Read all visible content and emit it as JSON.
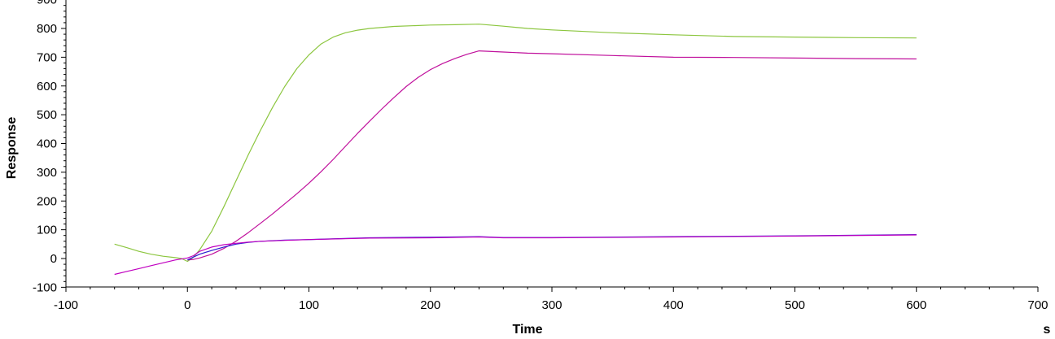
{
  "chart_data": {
    "type": "line",
    "title": "",
    "xlabel": "Time",
    "ylabel": "Response",
    "x_unit": "s",
    "xlim": [
      -100,
      700
    ],
    "ylim": [
      -100,
      900
    ],
    "x_ticks": [
      -100,
      0,
      100,
      200,
      300,
      400,
      500,
      600,
      700
    ],
    "y_ticks": [
      -100,
      0,
      100,
      200,
      300,
      400,
      500,
      600,
      700,
      800
    ],
    "grid": false,
    "legend": "none",
    "series": [
      {
        "color": "#8cc63f",
        "points": [
          [
            -60,
            50
          ],
          [
            -50,
            38
          ],
          [
            -40,
            25
          ],
          [
            -30,
            15
          ],
          [
            -20,
            8
          ],
          [
            -10,
            3
          ],
          [
            -5,
            0
          ],
          [
            0,
            -10
          ],
          [
            5,
            5
          ],
          [
            10,
            30
          ],
          [
            20,
            95
          ],
          [
            30,
            180
          ],
          [
            40,
            270
          ],
          [
            50,
            360
          ],
          [
            60,
            445
          ],
          [
            70,
            525
          ],
          [
            80,
            598
          ],
          [
            90,
            660
          ],
          [
            100,
            708
          ],
          [
            110,
            746
          ],
          [
            120,
            770
          ],
          [
            130,
            785
          ],
          [
            140,
            794
          ],
          [
            150,
            800
          ],
          [
            170,
            807
          ],
          [
            200,
            812
          ],
          [
            220,
            813
          ],
          [
            240,
            815
          ],
          [
            260,
            808
          ],
          [
            280,
            800
          ],
          [
            300,
            795
          ],
          [
            350,
            785
          ],
          [
            400,
            778
          ],
          [
            450,
            772
          ],
          [
            500,
            770
          ],
          [
            550,
            768
          ],
          [
            600,
            767
          ]
        ]
      },
      {
        "color": "#c0109c",
        "points": [
          [
            0,
            -5
          ],
          [
            5,
            -3
          ],
          [
            10,
            2
          ],
          [
            20,
            15
          ],
          [
            30,
            35
          ],
          [
            40,
            60
          ],
          [
            50,
            90
          ],
          [
            60,
            122
          ],
          [
            70,
            155
          ],
          [
            80,
            190
          ],
          [
            90,
            225
          ],
          [
            100,
            262
          ],
          [
            110,
            302
          ],
          [
            120,
            345
          ],
          [
            130,
            390
          ],
          [
            140,
            435
          ],
          [
            150,
            478
          ],
          [
            160,
            520
          ],
          [
            170,
            560
          ],
          [
            180,
            598
          ],
          [
            190,
            630
          ],
          [
            200,
            657
          ],
          [
            210,
            678
          ],
          [
            220,
            695
          ],
          [
            230,
            710
          ],
          [
            240,
            722
          ],
          [
            260,
            718
          ],
          [
            280,
            714
          ],
          [
            300,
            712
          ],
          [
            350,
            706
          ],
          [
            400,
            700
          ],
          [
            450,
            699
          ],
          [
            500,
            697
          ],
          [
            550,
            695
          ],
          [
            600,
            694
          ]
        ]
      },
      {
        "color": "#2a1ad0",
        "points": [
          [
            0,
            -5
          ],
          [
            5,
            5
          ],
          [
            10,
            15
          ],
          [
            20,
            28
          ],
          [
            30,
            40
          ],
          [
            40,
            50
          ],
          [
            50,
            56
          ],
          [
            60,
            60
          ],
          [
            70,
            62
          ],
          [
            80,
            64
          ],
          [
            100,
            66
          ],
          [
            150,
            72
          ],
          [
            200,
            74
          ],
          [
            240,
            76
          ],
          [
            260,
            73
          ],
          [
            300,
            73
          ],
          [
            400,
            76
          ],
          [
            500,
            79
          ],
          [
            600,
            83
          ]
        ]
      },
      {
        "color": "#c000c0",
        "points": [
          [
            -60,
            -55
          ],
          [
            -50,
            -45
          ],
          [
            -40,
            -35
          ],
          [
            -30,
            -25
          ],
          [
            -20,
            -15
          ],
          [
            -10,
            -5
          ],
          [
            0,
            2
          ],
          [
            5,
            10
          ],
          [
            10,
            25
          ],
          [
            20,
            40
          ],
          [
            30,
            48
          ],
          [
            40,
            53
          ],
          [
            50,
            57
          ],
          [
            60,
            60
          ],
          [
            80,
            63
          ],
          [
            100,
            66
          ],
          [
            150,
            71
          ],
          [
            200,
            72
          ],
          [
            240,
            75
          ],
          [
            260,
            72
          ],
          [
            300,
            72
          ],
          [
            400,
            75
          ],
          [
            500,
            78
          ],
          [
            600,
            82
          ]
        ]
      }
    ]
  }
}
